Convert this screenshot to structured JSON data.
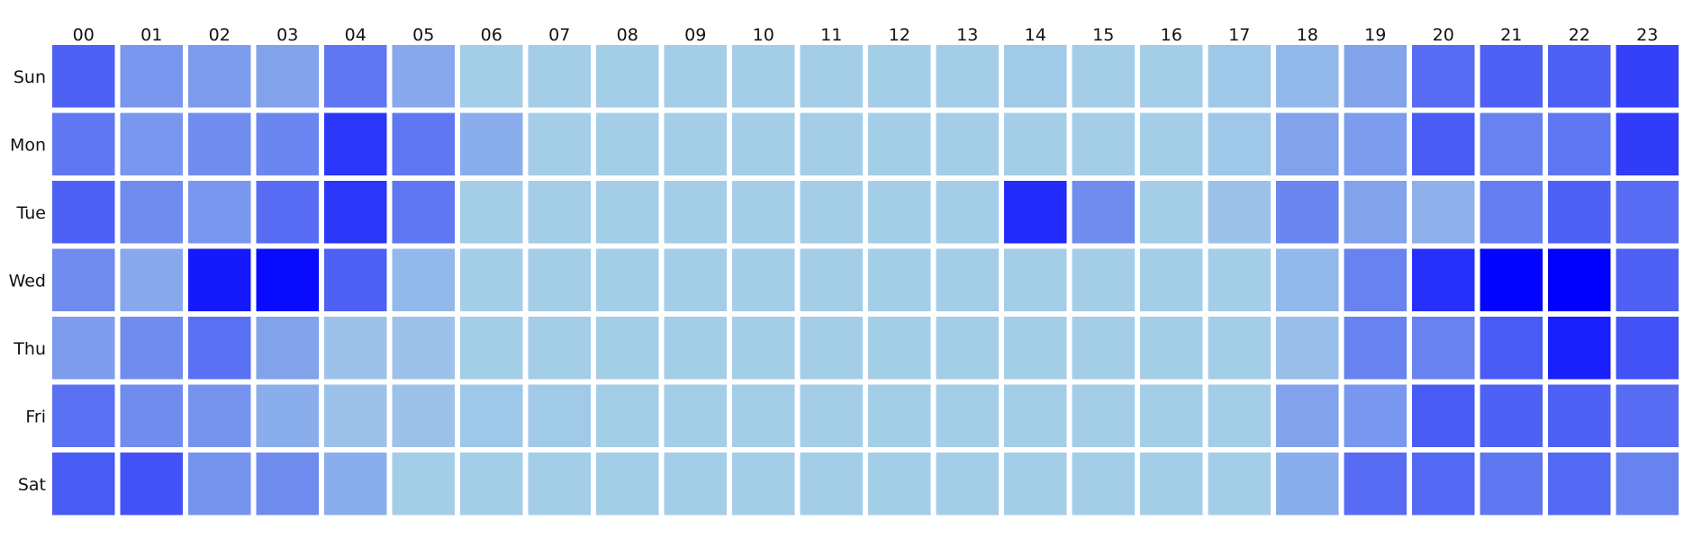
{
  "chart_data": {
    "type": "heatmap",
    "title": "",
    "xlabel": "",
    "ylabel": "",
    "x_labels": [
      "00",
      "01",
      "02",
      "03",
      "04",
      "05",
      "06",
      "07",
      "08",
      "09",
      "10",
      "11",
      "12",
      "13",
      "14",
      "15",
      "16",
      "17",
      "18",
      "19",
      "20",
      "21",
      "22",
      "23"
    ],
    "y_labels": [
      "Sun",
      "Mon",
      "Tue",
      "Wed",
      "Thu",
      "Fri",
      "Sat"
    ],
    "x_axis_position": "top",
    "grid": false,
    "legend": "none",
    "color_scale": {
      "low": "#add8e6",
      "high": "#0000ff",
      "range": [
        0,
        1
      ]
    },
    "values": [
      [
        0.55,
        0.3,
        0.28,
        0.25,
        0.45,
        0.22,
        0.05,
        0.05,
        0.05,
        0.05,
        0.05,
        0.05,
        0.05,
        0.05,
        0.07,
        0.05,
        0.05,
        0.08,
        0.15,
        0.25,
        0.5,
        0.55,
        0.55,
        0.7
      ],
      [
        0.45,
        0.3,
        0.35,
        0.38,
        0.75,
        0.45,
        0.2,
        0.05,
        0.05,
        0.05,
        0.05,
        0.05,
        0.05,
        0.05,
        0.05,
        0.05,
        0.05,
        0.08,
        0.25,
        0.28,
        0.58,
        0.4,
        0.45,
        0.72
      ],
      [
        0.55,
        0.35,
        0.3,
        0.5,
        0.75,
        0.45,
        0.05,
        0.05,
        0.05,
        0.05,
        0.05,
        0.05,
        0.05,
        0.05,
        0.8,
        0.35,
        0.05,
        0.1,
        0.38,
        0.25,
        0.18,
        0.42,
        0.55,
        0.5
      ],
      [
        0.35,
        0.22,
        0.88,
        0.95,
        0.55,
        0.15,
        0.05,
        0.05,
        0.05,
        0.05,
        0.05,
        0.05,
        0.05,
        0.05,
        0.05,
        0.05,
        0.05,
        0.05,
        0.15,
        0.4,
        0.78,
        0.98,
        1.0,
        0.55
      ],
      [
        0.28,
        0.35,
        0.48,
        0.25,
        0.1,
        0.1,
        0.05,
        0.05,
        0.05,
        0.05,
        0.05,
        0.05,
        0.05,
        0.05,
        0.05,
        0.05,
        0.05,
        0.05,
        0.12,
        0.4,
        0.4,
        0.58,
        0.85,
        0.62
      ],
      [
        0.48,
        0.35,
        0.32,
        0.2,
        0.1,
        0.1,
        0.08,
        0.07,
        0.05,
        0.05,
        0.05,
        0.05,
        0.05,
        0.05,
        0.05,
        0.05,
        0.05,
        0.05,
        0.25,
        0.3,
        0.58,
        0.55,
        0.55,
        0.5
      ],
      [
        0.58,
        0.62,
        0.32,
        0.35,
        0.2,
        0.05,
        0.05,
        0.05,
        0.05,
        0.05,
        0.05,
        0.05,
        0.05,
        0.05,
        0.05,
        0.05,
        0.05,
        0.05,
        0.2,
        0.5,
        0.52,
        0.45,
        0.52,
        0.4
      ]
    ]
  }
}
